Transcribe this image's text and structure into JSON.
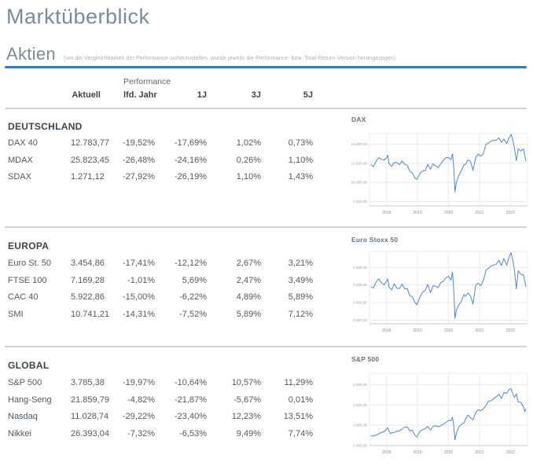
{
  "page": {
    "title": "Marktüberblick",
    "accent_color": "#3a7ab9"
  },
  "section": {
    "title": "Aktien",
    "note": "(um die Vergleichbarkeit der Performance sicherzustellen, wurde jeweils die Performance- bzw. Total-Return-Version herangezogen)"
  },
  "table": {
    "header": {
      "group_label": "Performance",
      "cols": [
        "Aktuell",
        "lfd. Jahr",
        "1J",
        "3J",
        "5J"
      ]
    },
    "groups": [
      {
        "name": "DEUTSCHLAND",
        "rows": [
          {
            "label": "DAX 40",
            "values": [
              "12.783,77",
              "-19,52%",
              "-17,69%",
              "1,02%",
              "0,73%"
            ]
          },
          {
            "label": "MDAX",
            "values": [
              "25.823,45",
              "-26,48%",
              "-24,16%",
              "0,26%",
              "1,10%"
            ]
          },
          {
            "label": "SDAX",
            "values": [
              "1.271,12",
              "-27,92%",
              "-26,19%",
              "1,10%",
              "1,43%"
            ]
          }
        ]
      },
      {
        "name": "EUROPA",
        "rows": [
          {
            "label": "Euro St. 50",
            "values": [
              "3.454,86",
              "-17,41%",
              "-12,12%",
              "2,67%",
              "3,21%"
            ]
          },
          {
            "label": "FTSE 100",
            "values": [
              "7.169,28",
              "-1,01%",
              "5,69%",
              "2,47%",
              "3,49%"
            ]
          },
          {
            "label": "CAC 40",
            "values": [
              "5.922,86",
              "-15,00%",
              "-6,22%",
              "4,89%",
              "5,89%"
            ]
          },
          {
            "label": "SMI",
            "values": [
              "10.741,21",
              "-14,31%",
              "-7,52%",
              "5,89%",
              "7,12%"
            ]
          }
        ]
      },
      {
        "name": "GLOBAL",
        "rows": [
          {
            "label": "S&P 500",
            "values": [
              "3.785,38",
              "-19,97%",
              "-10,64%",
              "10,57%",
              "11,29%"
            ]
          },
          {
            "label": "Hang-Seng",
            "values": [
              "21.859,79",
              "-4,82%",
              "-21,87%",
              "-5,67%",
              "0,01%"
            ]
          },
          {
            "label": "Nasdaq",
            "values": [
              "11.028,74",
              "-29,22%",
              "-23,40%",
              "12,23%",
              "13,51%"
            ]
          },
          {
            "label": "Nikkei",
            "values": [
              "26.393,04",
              "-7,32%",
              "-6,53%",
              "9,49%",
              "7,74%"
            ]
          }
        ]
      }
    ]
  },
  "chart_data": [
    {
      "type": "line",
      "title": "DAX",
      "line_color": "#5585d2",
      "grid": true,
      "xlim": [
        2017.45,
        2022.55
      ],
      "ylim": [
        6900,
        16400
      ],
      "x_ticks": [
        2018,
        2019,
        2020,
        2021,
        2022
      ],
      "y_ticks": [
        {
          "value": 15000,
          "label": "15.000,00"
        },
        {
          "value": 12500,
          "label": "12.500,00"
        },
        {
          "value": 10000,
          "label": "10.000,00"
        },
        {
          "value": 7500,
          "label": "7.500,00"
        }
      ],
      "points": [
        [
          2017.5,
          12325
        ],
        [
          2017.58,
          12055
        ],
        [
          2017.67,
          12829
        ],
        [
          2017.75,
          13230
        ],
        [
          2017.83,
          13024
        ],
        [
          2017.92,
          12918
        ],
        [
          2018.0,
          13190
        ],
        [
          2018.04,
          13560
        ],
        [
          2018.08,
          12436
        ],
        [
          2018.17,
          12097
        ],
        [
          2018.25,
          12612
        ],
        [
          2018.33,
          12605
        ],
        [
          2018.42,
          12306
        ],
        [
          2018.5,
          12806
        ],
        [
          2018.58,
          12364
        ],
        [
          2018.67,
          12247
        ],
        [
          2018.75,
          11447
        ],
        [
          2018.83,
          11257
        ],
        [
          2018.92,
          10559
        ],
        [
          2018.98,
          10382
        ],
        [
          2019.08,
          11173
        ],
        [
          2019.17,
          11516
        ],
        [
          2019.25,
          11526
        ],
        [
          2019.33,
          12344
        ],
        [
          2019.42,
          11727
        ],
        [
          2019.5,
          12399
        ],
        [
          2019.58,
          12189
        ],
        [
          2019.67,
          11939
        ],
        [
          2019.75,
          12428
        ],
        [
          2019.83,
          12867
        ],
        [
          2019.92,
          13236
        ],
        [
          2020.0,
          13249
        ],
        [
          2020.08,
          12982
        ],
        [
          2020.13,
          13744
        ],
        [
          2020.17,
          11890
        ],
        [
          2020.21,
          8742
        ],
        [
          2020.25,
          9936
        ],
        [
          2020.33,
          10862
        ],
        [
          2020.42,
          11587
        ],
        [
          2020.5,
          12311
        ],
        [
          2020.54,
          12313
        ],
        [
          2020.63,
          12945
        ],
        [
          2020.71,
          12761
        ],
        [
          2020.79,
          11556
        ],
        [
          2020.88,
          13291
        ],
        [
          2020.96,
          13719
        ],
        [
          2021.04,
          13432
        ],
        [
          2021.13,
          13786
        ],
        [
          2021.21,
          15008
        ],
        [
          2021.29,
          15136
        ],
        [
          2021.38,
          15421
        ],
        [
          2021.46,
          15531
        ],
        [
          2021.54,
          15544
        ],
        [
          2021.63,
          15835
        ],
        [
          2021.71,
          15261
        ],
        [
          2021.79,
          15689
        ],
        [
          2021.88,
          15100
        ],
        [
          2021.96,
          15885
        ],
        [
          2022.02,
          16271
        ],
        [
          2022.08,
          15471
        ],
        [
          2022.13,
          14461
        ],
        [
          2022.19,
          12831
        ],
        [
          2022.25,
          14415
        ],
        [
          2022.33,
          14098
        ],
        [
          2022.42,
          14388
        ],
        [
          2022.5,
          12784
        ]
      ]
    },
    {
      "type": "line",
      "title": "Euro Stoxx 50",
      "line_color": "#5585d2",
      "grid": true,
      "xlim": [
        2017.45,
        2022.55
      ],
      "ylim": [
        2400,
        4450
      ],
      "x_ticks": [
        2018,
        2019,
        2020,
        2021,
        2022
      ],
      "y_ticks": [
        {
          "value": 4000,
          "label": "4.000,00"
        },
        {
          "value": 3500,
          "label": "3.500,00"
        },
        {
          "value": 3000,
          "label": "3.000,00"
        },
        {
          "value": 2500,
          "label": "2.500,00"
        }
      ],
      "points": [
        [
          2017.5,
          3450
        ],
        [
          2017.58,
          3421
        ],
        [
          2017.67,
          3595
        ],
        [
          2017.75,
          3674
        ],
        [
          2017.83,
          3570
        ],
        [
          2017.92,
          3504
        ],
        [
          2018.0,
          3609
        ],
        [
          2018.04,
          3672
        ],
        [
          2018.08,
          3439
        ],
        [
          2018.17,
          3362
        ],
        [
          2018.25,
          3537
        ],
        [
          2018.33,
          3407
        ],
        [
          2018.42,
          3396
        ],
        [
          2018.5,
          3525
        ],
        [
          2018.58,
          3393
        ],
        [
          2018.67,
          3399
        ],
        [
          2018.75,
          3198
        ],
        [
          2018.83,
          3173
        ],
        [
          2018.92,
          3001
        ],
        [
          2018.98,
          2937
        ],
        [
          2019.08,
          3159
        ],
        [
          2019.17,
          3298
        ],
        [
          2019.25,
          3352
        ],
        [
          2019.33,
          3515
        ],
        [
          2019.42,
          3280
        ],
        [
          2019.5,
          3474
        ],
        [
          2019.58,
          3467
        ],
        [
          2019.67,
          3427
        ],
        [
          2019.75,
          3569
        ],
        [
          2019.83,
          3604
        ],
        [
          2019.92,
          3704
        ],
        [
          2020.0,
          3745
        ],
        [
          2020.08,
          3641
        ],
        [
          2020.13,
          3865
        ],
        [
          2020.17,
          3329
        ],
        [
          2020.21,
          2549
        ],
        [
          2020.25,
          2787
        ],
        [
          2020.33,
          2928
        ],
        [
          2020.42,
          3050
        ],
        [
          2020.5,
          3234
        ],
        [
          2020.54,
          3174
        ],
        [
          2020.63,
          3272
        ],
        [
          2020.71,
          3194
        ],
        [
          2020.79,
          2958
        ],
        [
          2020.88,
          3493
        ],
        [
          2020.96,
          3553
        ],
        [
          2021.04,
          3481
        ],
        [
          2021.13,
          3636
        ],
        [
          2021.21,
          3919
        ],
        [
          2021.29,
          3974
        ],
        [
          2021.38,
          4039
        ],
        [
          2021.46,
          4064
        ],
        [
          2021.54,
          4089
        ],
        [
          2021.63,
          4196
        ],
        [
          2021.71,
          4048
        ],
        [
          2021.79,
          4251
        ],
        [
          2021.88,
          4063
        ],
        [
          2021.96,
          4298
        ],
        [
          2022.02,
          4415
        ],
        [
          2022.08,
          4175
        ],
        [
          2022.13,
          3924
        ],
        [
          2022.19,
          3387
        ],
        [
          2022.25,
          3903
        ],
        [
          2022.33,
          3803
        ],
        [
          2022.42,
          3789
        ],
        [
          2022.5,
          3455
        ]
      ]
    },
    {
      "type": "line",
      "title": "S&P 500",
      "line_color": "#5585d2",
      "grid": true,
      "xlim": [
        2017.45,
        2022.55
      ],
      "ylim": [
        2000,
        5550
      ],
      "x_ticks": [
        2018,
        2019,
        2020,
        2021,
        2022
      ],
      "y_ticks": [
        {
          "value": 5000,
          "label": "5.000,00"
        },
        {
          "value": 4000,
          "label": "4.000,00"
        },
        {
          "value": 3000,
          "label": "3.000,00"
        },
        {
          "value": 2000,
          "label": "2.000,00"
        }
      ],
      "points": [
        [
          2017.5,
          2470
        ],
        [
          2017.58,
          2472
        ],
        [
          2017.67,
          2519
        ],
        [
          2017.75,
          2575
        ],
        [
          2017.83,
          2648
        ],
        [
          2017.92,
          2674
        ],
        [
          2018.0,
          2824
        ],
        [
          2018.04,
          2873
        ],
        [
          2018.08,
          2714
        ],
        [
          2018.13,
          2581
        ],
        [
          2018.17,
          2641
        ],
        [
          2018.25,
          2648
        ],
        [
          2018.33,
          2705
        ],
        [
          2018.42,
          2718
        ],
        [
          2018.5,
          2816
        ],
        [
          2018.58,
          2902
        ],
        [
          2018.67,
          2914
        ],
        [
          2018.75,
          2712
        ],
        [
          2018.83,
          2760
        ],
        [
          2018.92,
          2507
        ],
        [
          2018.98,
          2416
        ],
        [
          2019.08,
          2704
        ],
        [
          2019.17,
          2784
        ],
        [
          2019.25,
          2834
        ],
        [
          2019.33,
          2946
        ],
        [
          2019.42,
          2752
        ],
        [
          2019.5,
          2942
        ],
        [
          2019.58,
          2980
        ],
        [
          2019.67,
          2926
        ],
        [
          2019.75,
          2977
        ],
        [
          2019.83,
          3038
        ],
        [
          2019.92,
          3141
        ],
        [
          2020.0,
          3231
        ],
        [
          2020.08,
          3226
        ],
        [
          2020.13,
          3386
        ],
        [
          2020.17,
          2954
        ],
        [
          2020.21,
          2281
        ],
        [
          2020.25,
          2585
        ],
        [
          2020.33,
          2912
        ],
        [
          2020.42,
          3044
        ],
        [
          2020.5,
          3100
        ],
        [
          2020.54,
          3271
        ],
        [
          2020.63,
          3500
        ],
        [
          2020.71,
          3363
        ],
        [
          2020.79,
          3270
        ],
        [
          2020.88,
          3622
        ],
        [
          2020.96,
          3756
        ],
        [
          2021.04,
          3714
        ],
        [
          2021.13,
          3811
        ],
        [
          2021.21,
          3973
        ],
        [
          2021.29,
          4181
        ],
        [
          2021.38,
          4204
        ],
        [
          2021.46,
          4298
        ],
        [
          2021.54,
          4395
        ],
        [
          2021.63,
          4523
        ],
        [
          2021.71,
          4308
        ],
        [
          2021.79,
          4605
        ],
        [
          2021.88,
          4567
        ],
        [
          2021.96,
          4766
        ],
        [
          2022.02,
          4797
        ],
        [
          2022.08,
          4516
        ],
        [
          2022.13,
          4374
        ],
        [
          2022.19,
          4530
        ],
        [
          2022.25,
          4132
        ],
        [
          2022.33,
          4132
        ],
        [
          2022.42,
          3900
        ],
        [
          2022.46,
          3667
        ],
        [
          2022.5,
          3785
        ]
      ]
    }
  ]
}
